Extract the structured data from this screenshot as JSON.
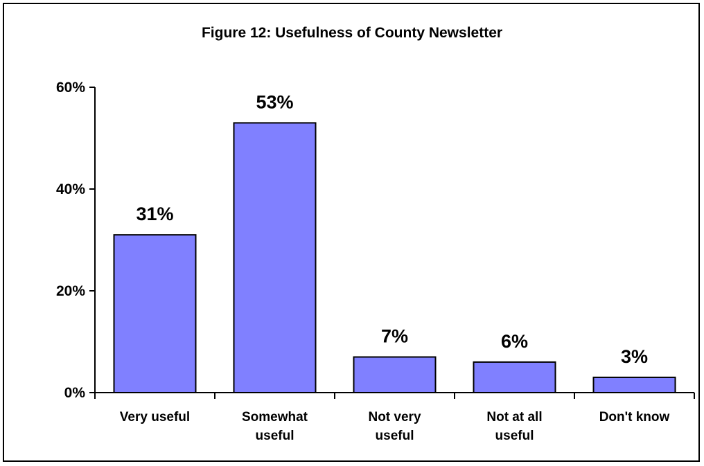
{
  "chart_data": {
    "type": "bar",
    "title": "Figure 12: Usefulness of County Newsletter",
    "xlabel": "",
    "ylabel": "",
    "categories": [
      "Very useful",
      "Somewhat useful",
      "Not very useful",
      "Not at all useful",
      "Don't know"
    ],
    "category_lines": [
      [
        "Very useful"
      ],
      [
        "Somewhat",
        "useful"
      ],
      [
        "Not very",
        "useful"
      ],
      [
        "Not at all",
        "useful"
      ],
      [
        "Don't know"
      ]
    ],
    "values": [
      31,
      53,
      7,
      6,
      3
    ],
    "value_labels": [
      "31%",
      "53%",
      "7%",
      "6%",
      "3%"
    ],
    "ylim": [
      0,
      60
    ],
    "yticks": [
      0,
      20,
      40,
      60
    ],
    "ytick_labels": [
      "0%",
      "20%",
      "40%",
      "60%"
    ],
    "grid": false,
    "legend": "none",
    "bar_color": "#8080ff",
    "bar_edge_color": "#000000"
  }
}
